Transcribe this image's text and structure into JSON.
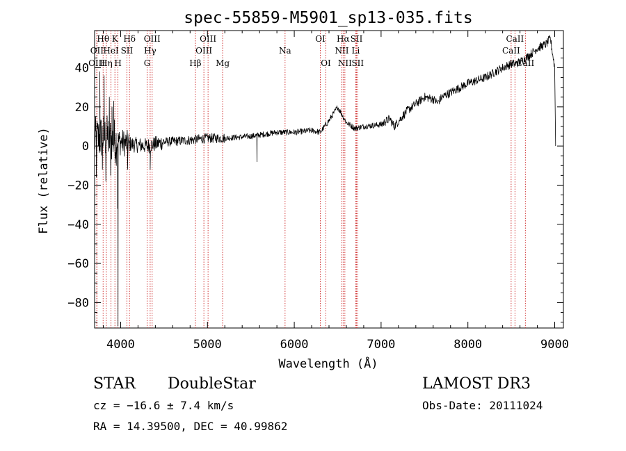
{
  "chart_data": {
    "type": "line",
    "title": "spec-55859-M5901_sp13-035.fits",
    "xlabel": "Wavelength (Å)",
    "ylabel": "Flux (relative)",
    "xlim": [
      3700,
      9100
    ],
    "ylim": [
      -93,
      59
    ],
    "xticks": [
      4000,
      5000,
      6000,
      7000,
      8000,
      9000
    ],
    "yticks": [
      -80,
      -60,
      -40,
      -20,
      0,
      20,
      40
    ],
    "colors": {
      "spectrum": "#000000",
      "lines": "#cc2222",
      "axes": "#000000"
    },
    "spectrum_anchors": {
      "wavelength": [
        3700,
        3800,
        3900,
        4000,
        4100,
        4300,
        4500,
        4800,
        5000,
        5200,
        5500,
        5800,
        6000,
        6200,
        6300,
        6400,
        6500,
        6600,
        6700,
        6800,
        7000,
        7100,
        7150,
        7300,
        7500,
        7600,
        7650,
        7700,
        8000,
        8200,
        8400,
        8500,
        8550,
        8600,
        8700,
        8800,
        8900,
        8950,
        9000
      ],
      "flux": [
        3,
        5,
        3,
        2,
        1,
        0,
        2,
        3,
        4,
        4,
        5,
        7,
        7,
        8,
        7,
        13,
        20,
        12,
        9,
        10,
        11,
        14,
        10,
        18,
        25,
        24,
        22,
        25,
        32,
        35,
        40,
        42,
        42,
        43,
        46,
        50,
        52,
        55,
        40
      ]
    },
    "spectrum_spikes": [
      {
        "wavelength": 3720,
        "flux": -16
      },
      {
        "wavelength": 3760,
        "flux": 38
      },
      {
        "wavelength": 3790,
        "flux": -12
      },
      {
        "wavelength": 3810,
        "flux": 36
      },
      {
        "wavelength": 3830,
        "flux": -18
      },
      {
        "wavelength": 3870,
        "flux": 25
      },
      {
        "wavelength": 3885,
        "flux": -15
      },
      {
        "wavelength": 3900,
        "flux": 20
      },
      {
        "wavelength": 3920,
        "flux": 23
      },
      {
        "wavelength": 3950,
        "flux": -10
      },
      {
        "wavelength": 3965,
        "flux": -32
      },
      {
        "wavelength": 3970,
        "flux": -92
      },
      {
        "wavelength": 3975,
        "flux": 5
      },
      {
        "wavelength": 4080,
        "flux": -12
      },
      {
        "wavelength": 4340,
        "flux": -12
      },
      {
        "wavelength": 5570,
        "flux": -8
      },
      {
        "wavelength": 9010,
        "flux": 0
      }
    ],
    "line_markers": [
      {
        "label": "Hθ",
        "wavelength": 3798,
        "row": 1
      },
      {
        "label": "OII",
        "wavelength": 3727,
        "row": 2
      },
      {
        "label": "OIII",
        "wavelength": 3725,
        "row": 3
      },
      {
        "label": "Hη",
        "wavelength": 3835,
        "row": 3
      },
      {
        "label": "HeI",
        "wavelength": 3889,
        "row": 2
      },
      {
        "label": "K",
        "wavelength": 3934,
        "row": 1
      },
      {
        "label": "H",
        "wavelength": 3969,
        "row": 3
      },
      {
        "label": "SII",
        "wavelength": 4072,
        "row": 2
      },
      {
        "label": "Hδ",
        "wavelength": 4102,
        "row": 1
      },
      {
        "label": "Hγ",
        "wavelength": 4340,
        "row": 2
      },
      {
        "label": "G",
        "wavelength": 4305,
        "row": 3
      },
      {
        "label": "OIII",
        "wavelength": 4363,
        "row": 1
      },
      {
        "label": "Hβ",
        "wavelength": 4861,
        "row": 3
      },
      {
        "label": "OIII",
        "wavelength": 5007,
        "row": 1
      },
      {
        "label": "OIII",
        "wavelength": 4959,
        "row": 2
      },
      {
        "label": "Mg",
        "wavelength": 5175,
        "row": 3
      },
      {
        "label": "Na",
        "wavelength": 5894,
        "row": 2
      },
      {
        "label": "OI",
        "wavelength": 6300,
        "row": 1
      },
      {
        "label": "OI",
        "wavelength": 6364,
        "row": 3
      },
      {
        "label": "Hα",
        "wavelength": 6563,
        "row": 1
      },
      {
        "label": "NII",
        "wavelength": 6548,
        "row": 2
      },
      {
        "label": "NII",
        "wavelength": 6583,
        "row": 3
      },
      {
        "label": "SII",
        "wavelength": 6717,
        "row": 1
      },
      {
        "label": "Li",
        "wavelength": 6708,
        "row": 2
      },
      {
        "label": "SII",
        "wavelength": 6731,
        "row": 3
      },
      {
        "label": "CaII",
        "wavelength": 8542,
        "row": 1
      },
      {
        "label": "CaII",
        "wavelength": 8498,
        "row": 2
      },
      {
        "label": "CaII",
        "wavelength": 8662,
        "row": 3
      }
    ]
  },
  "info": {
    "class": "STAR",
    "subclass": "DoubleStar",
    "survey": "LAMOST DR3",
    "cz": "cz = −16.6 ± 7.4 km/s",
    "obs_date": "Obs-Date: 20111024",
    "radec": "RA =  14.39500, DEC =  40.99862"
  }
}
